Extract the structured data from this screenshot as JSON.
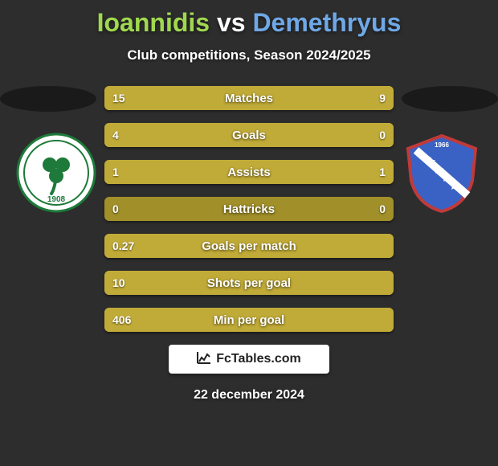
{
  "title": {
    "player1": "Ioannidis",
    "vs": "vs",
    "player2": "Demethryus",
    "player1_color": "#a0d84f",
    "vs_color": "#ffffff",
    "player2_color": "#6fa8e6"
  },
  "subtitle": "Club competitions, Season 2024/2025",
  "background_color": "#2d2d2d",
  "spot_color": "#1a1a1a",
  "logos": {
    "left": {
      "bg": "#ffffff",
      "ring": "#1e7a3a",
      "accent": "#1e7a3a",
      "year": "1908"
    },
    "right": {
      "bg": "#3a62c4",
      "ring": "#c13a3a",
      "accent": "#ffffff",
      "year": "1966"
    }
  },
  "bars": {
    "track_color": "#a18f2a",
    "fill_color": "#c1ab38",
    "text_color": "#ffffff",
    "label_fontsize": 15,
    "value_fontsize": 14,
    "height": 30,
    "gap": 16,
    "rows": [
      {
        "label": "Matches",
        "left_val": "15",
        "right_val": "9",
        "left_pct": 62.5,
        "right_pct": 37.5
      },
      {
        "label": "Goals",
        "left_val": "4",
        "right_val": "0",
        "left_pct": 100,
        "right_pct": 0
      },
      {
        "label": "Assists",
        "left_val": "1",
        "right_val": "1",
        "left_pct": 50,
        "right_pct": 50
      },
      {
        "label": "Hattricks",
        "left_val": "0",
        "right_val": "0",
        "left_pct": 0,
        "right_pct": 0
      },
      {
        "label": "Goals per match",
        "left_val": "0.27",
        "right_val": "",
        "left_pct": 100,
        "right_pct": 0
      },
      {
        "label": "Shots per goal",
        "left_val": "10",
        "right_val": "",
        "left_pct": 100,
        "right_pct": 0
      },
      {
        "label": "Min per goal",
        "left_val": "406",
        "right_val": "",
        "left_pct": 100,
        "right_pct": 0
      }
    ]
  },
  "footer": {
    "brand": "FcTables.com",
    "date": "22 december 2024"
  }
}
